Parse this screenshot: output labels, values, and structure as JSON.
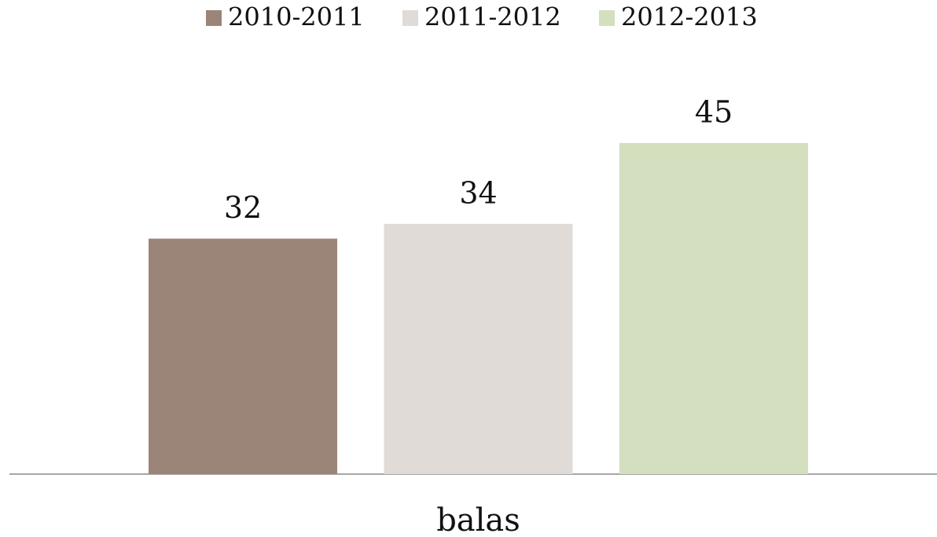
{
  "chart_data": {
    "type": "bar",
    "categories": [
      "balas"
    ],
    "series": [
      {
        "name": "2010-2011",
        "color": "#9b8579",
        "values": [
          32
        ]
      },
      {
        "name": "2011-2012",
        "color": "#e0dbd7",
        "values": [
          34
        ]
      },
      {
        "name": "2012-2013",
        "color": "#d3dfbe",
        "values": [
          45
        ]
      }
    ],
    "ylim": [
      0,
      64
    ],
    "legend": "top"
  }
}
